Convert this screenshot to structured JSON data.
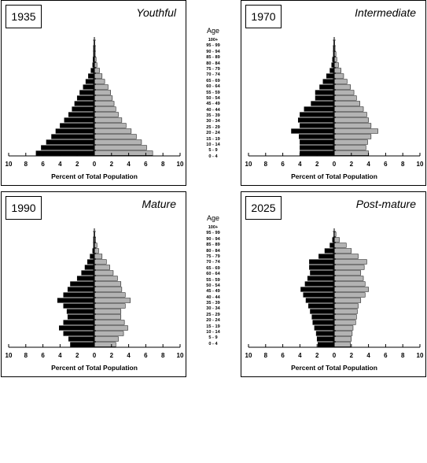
{
  "age_title": "Age",
  "age_groups": [
    "100+",
    "95 - 99",
    "90 - 94",
    "85 - 89",
    "80 - 84",
    "75 - 79",
    "70 - 74",
    "65 - 69",
    "60 - 64",
    "55 - 59",
    "50 - 54",
    "45 - 49",
    "40 - 44",
    "35 - 39",
    "30 - 34",
    "25 - 29",
    "20 - 24",
    "15 - 19",
    "10 - 14",
    "5 - 9",
    "0 - 4"
  ],
  "colors": {
    "male": "#000000",
    "female": "#b3b3b3",
    "axis": "#000000"
  },
  "chart_data": [
    {
      "type": "bar",
      "year": "1935",
      "stage": "Youthful",
      "xlabel": "Percent of Total Population",
      "xlim": [
        -10,
        10
      ],
      "xticks": [
        "10",
        "8",
        "6",
        "4",
        "2",
        "0",
        "2",
        "4",
        "6",
        "8",
        "10"
      ],
      "categories": [
        "100+",
        "95 - 99",
        "90 - 94",
        "85 - 89",
        "80 - 84",
        "75 - 79",
        "70 - 74",
        "65 - 69",
        "60 - 64",
        "55 - 59",
        "50 - 54",
        "45 - 49",
        "40 - 44",
        "35 - 39",
        "30 - 34",
        "25 - 29",
        "20 - 24",
        "15 - 19",
        "10 - 14",
        "5 - 9",
        "0 - 4"
      ],
      "series": [
        {
          "name": "",
          "side": "left",
          "values": [
            0.05,
            0.1,
            0.1,
            0.15,
            0.2,
            0.4,
            0.7,
            1.0,
            1.3,
            1.7,
            2.0,
            2.3,
            2.6,
            3.0,
            3.5,
            4.0,
            4.5,
            5.0,
            5.6,
            6.2,
            6.8
          ]
        },
        {
          "name": "",
          "side": "right",
          "values": [
            0.05,
            0.1,
            0.1,
            0.2,
            0.3,
            0.6,
            0.9,
            1.2,
            1.6,
            1.9,
            2.1,
            2.3,
            2.5,
            2.8,
            3.2,
            3.7,
            4.3,
            4.9,
            5.5,
            6.1,
            6.8
          ]
        }
      ]
    },
    {
      "type": "bar",
      "year": "1970",
      "stage": "Intermediate",
      "xlabel": "Percent of Total Population",
      "xlim": [
        -10,
        10
      ],
      "xticks": [
        "10",
        "8",
        "6",
        "4",
        "2",
        "0",
        "2",
        "4",
        "6",
        "8",
        "10"
      ],
      "categories": [
        "100+",
        "95 - 99",
        "90 - 94",
        "85 - 89",
        "80 - 84",
        "75 - 79",
        "70 - 74",
        "65 - 69",
        "60 - 64",
        "55 - 59",
        "50 - 54",
        "45 - 49",
        "40 - 44",
        "35 - 39",
        "30 - 34",
        "25 - 29",
        "20 - 24",
        "15 - 19",
        "10 - 14",
        "5 - 9",
        "0 - 4"
      ],
      "series": [
        {
          "name": "",
          "side": "left",
          "values": [
            0.05,
            0.1,
            0.1,
            0.2,
            0.3,
            0.5,
            0.9,
            1.3,
            1.7,
            2.2,
            2.2,
            2.7,
            3.5,
            4.0,
            4.2,
            4.0,
            5.0,
            4.1,
            4.0,
            4.0,
            4.0
          ]
        },
        {
          "name": "",
          "side": "right",
          "values": [
            0.05,
            0.1,
            0.2,
            0.3,
            0.5,
            0.8,
            1.1,
            1.5,
            1.9,
            2.3,
            2.6,
            3.0,
            3.4,
            3.8,
            4.0,
            4.3,
            5.1,
            4.3,
            3.9,
            3.7,
            4.0
          ]
        }
      ]
    },
    {
      "type": "bar",
      "year": "1990",
      "stage": "Mature",
      "xlabel": "Percent of Total Population",
      "xlim": [
        -10,
        10
      ],
      "xticks": [
        "10",
        "8",
        "6",
        "4",
        "2",
        "0",
        "2",
        "4",
        "6",
        "8",
        "10"
      ],
      "categories": [
        "100+",
        "95 - 99",
        "90 - 94",
        "85 - 89",
        "80 - 84",
        "75 - 79",
        "70 - 74",
        "65 - 69",
        "60 - 64",
        "55 - 59",
        "50 - 54",
        "45 - 49",
        "40 - 44",
        "35 - 39",
        "30 - 34",
        "25 - 29",
        "20 - 24",
        "15 - 19",
        "10 - 14",
        "5 - 9",
        "0 - 4"
      ],
      "series": [
        {
          "name": "",
          "side": "left",
          "values": [
            0.05,
            0.1,
            0.1,
            0.2,
            0.5,
            0.8,
            1.1,
            1.5,
            2.0,
            2.8,
            3.1,
            3.6,
            4.3,
            3.6,
            3.2,
            3.1,
            3.6,
            4.1,
            3.6,
            3.0,
            2.8
          ]
        },
        {
          "name": "",
          "side": "right",
          "values": [
            0.05,
            0.15,
            0.3,
            0.5,
            0.9,
            1.4,
            1.8,
            2.2,
            2.7,
            3.1,
            3.2,
            3.6,
            4.2,
            3.6,
            3.1,
            3.1,
            3.5,
            3.9,
            3.4,
            2.8,
            2.5
          ]
        }
      ]
    },
    {
      "type": "bar",
      "year": "2025",
      "stage": "Post-mature",
      "xlabel": "Percent of Total Population",
      "xlim": [
        -10,
        10
      ],
      "xticks": [
        "10",
        "8",
        "6",
        "4",
        "2",
        "0",
        "2",
        "4",
        "6",
        "8",
        "10"
      ],
      "categories": [
        "100+",
        "95 - 99",
        "90 - 94",
        "85 - 89",
        "80 - 84",
        "75 - 79",
        "70 - 74",
        "65 - 69",
        "60 - 64",
        "55 - 59",
        "50 - 54",
        "45 - 49",
        "40 - 44",
        "35 - 39",
        "30 - 34",
        "25 - 29",
        "20 - 24",
        "15 - 19",
        "10 - 14",
        "5 - 9",
        "0 - 4"
      ],
      "series": [
        {
          "name": "",
          "side": "left",
          "values": [
            0.05,
            0.2,
            0.5,
            1.1,
            1.8,
            2.9,
            2.9,
            2.8,
            3.1,
            3.4,
            3.9,
            3.6,
            3.3,
            3.0,
            2.8,
            2.6,
            2.5,
            2.3,
            2.1,
            2.0,
            1.9
          ]
        },
        {
          "name": "",
          "side": "right",
          "values": [
            0.2,
            0.6,
            1.4,
            2.0,
            2.8,
            3.8,
            3.5,
            3.1,
            3.4,
            3.6,
            4.0,
            3.6,
            3.1,
            2.8,
            2.7,
            2.6,
            2.5,
            2.2,
            2.1,
            2.0,
            1.9
          ]
        }
      ]
    }
  ]
}
